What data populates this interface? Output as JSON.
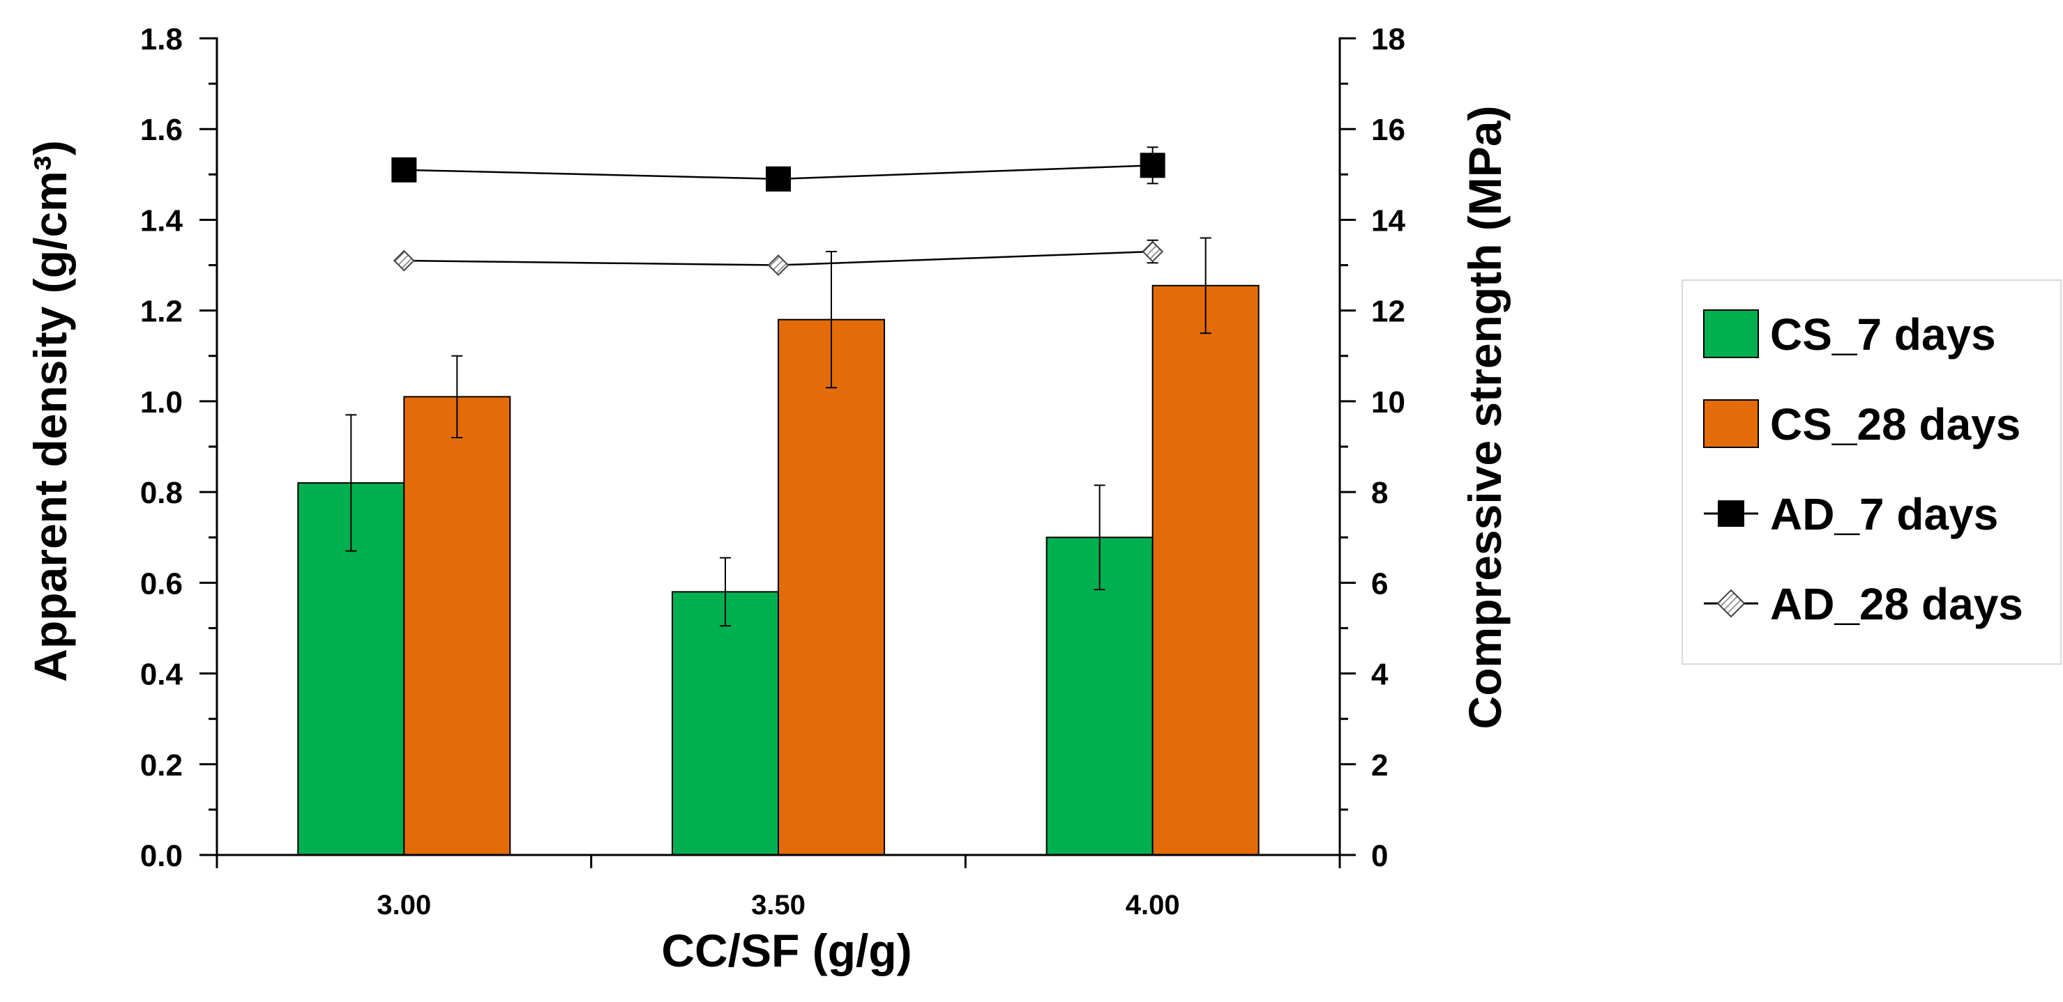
{
  "chart_data": {
    "type": "bar",
    "categories": [
      "3.00",
      "3.50",
      "4.00"
    ],
    "xlabel": "CC/SF (g/g)",
    "ylabel": "Apparent density (g/cm³)",
    "ylabel_right": "Compressive strength (MPa)",
    "ylim": [
      0,
      1.8
    ],
    "ylim_right": [
      0,
      18
    ],
    "yticks_left": [
      "0.0",
      "0.2",
      "0.4",
      "0.6",
      "0.8",
      "1.0",
      "1.2",
      "1.4",
      "1.6",
      "1.8"
    ],
    "yticks_right": [
      "0",
      "2",
      "4",
      "6",
      "8",
      "10",
      "12",
      "14",
      "16",
      "18"
    ],
    "grid": false,
    "legend_position": "right",
    "series": [
      {
        "name": "CS_7 days",
        "type": "bar",
        "axis": "right",
        "color": "#00B050",
        "values": [
          8.2,
          5.8,
          7.0
        ],
        "errors": [
          1.5,
          0.75,
          1.15
        ]
      },
      {
        "name": "CS_28 days",
        "type": "bar",
        "axis": "right",
        "color": "#E36C09",
        "values": [
          10.1,
          11.8,
          12.55
        ],
        "errors": [
          0.9,
          1.5,
          1.05
        ]
      },
      {
        "name": "AD_7 days",
        "type": "line",
        "axis": "left",
        "marker": "square",
        "color": "#000000",
        "values": [
          1.51,
          1.49,
          1.52
        ],
        "errors": [
          0,
          0,
          0.04
        ]
      },
      {
        "name": "AD_28 days",
        "type": "line",
        "axis": "left",
        "marker": "diamond",
        "color": "#000000",
        "values": [
          1.31,
          1.3,
          1.33
        ],
        "errors": [
          0,
          0,
          0.025
        ]
      }
    ]
  }
}
